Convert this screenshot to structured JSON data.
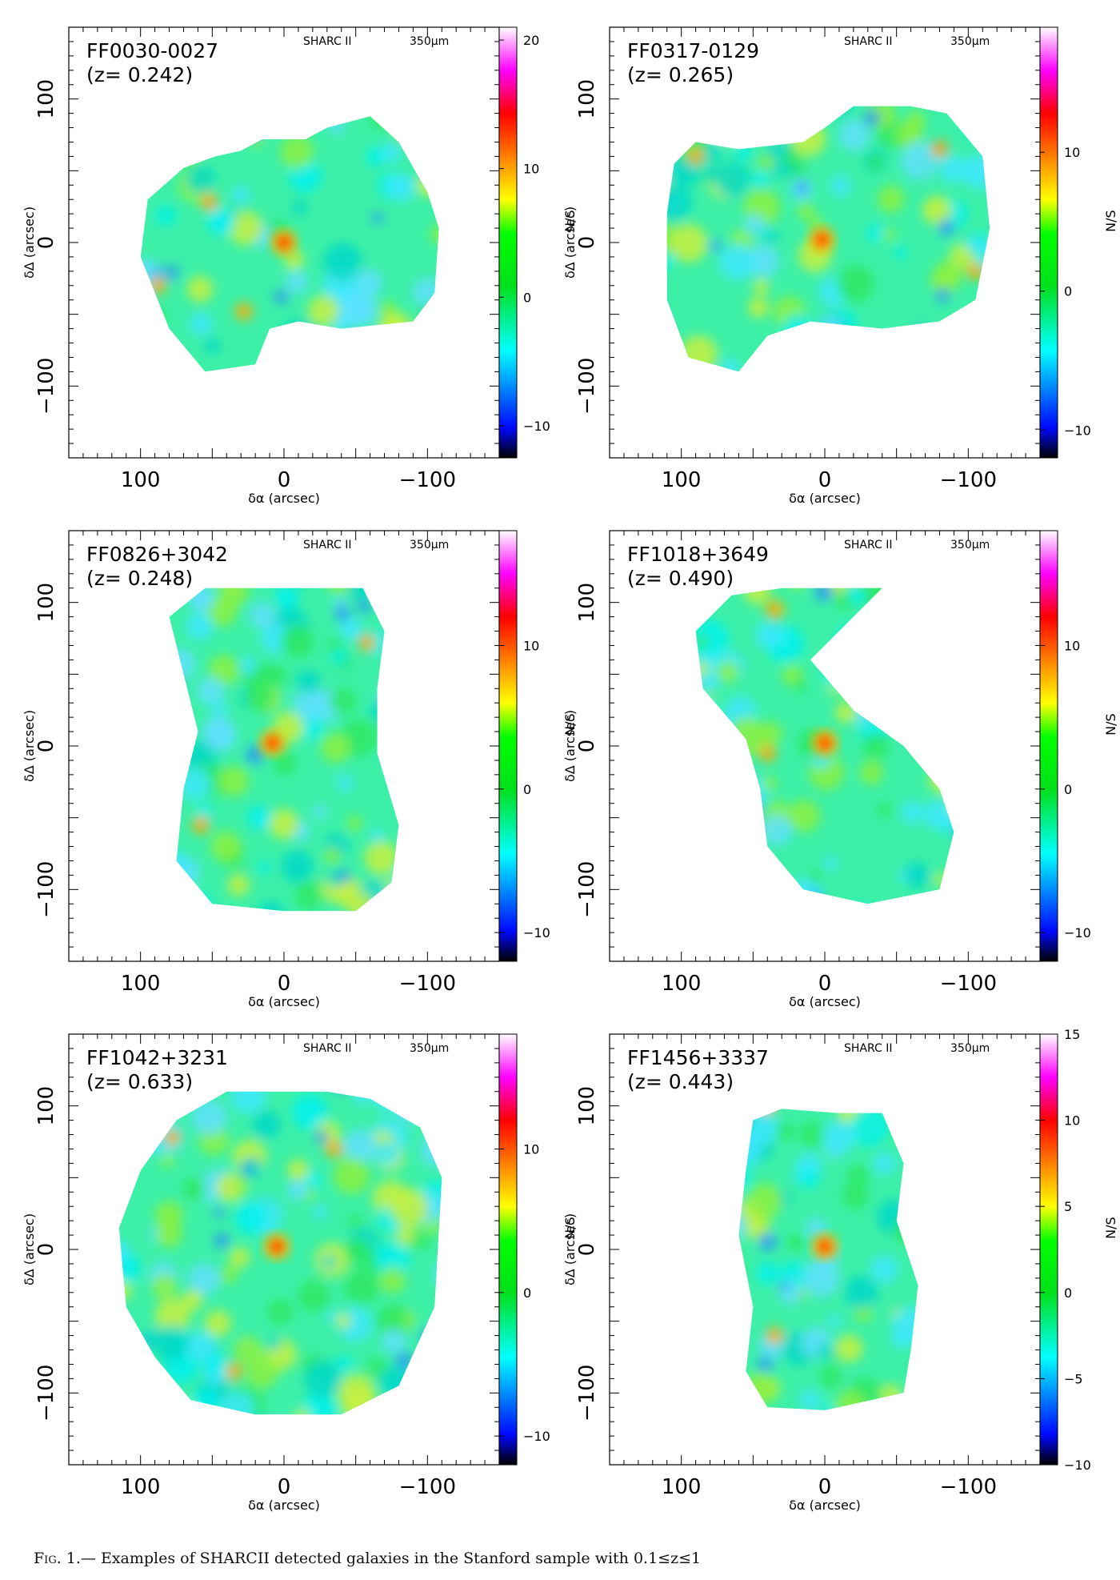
{
  "figure": {
    "caption_label": "Fig. 1.—",
    "caption_text": "Examples of SHARCII detected galaxies in the Stanford sample with 0.1≤z≤1"
  },
  "chart_data": [
    {
      "type": "heatmap",
      "name": "FF0030-0027",
      "redshift_label": "(z= 0.242)",
      "instrument": "SHARC II",
      "wavelength": "350μm",
      "xlabel": "δα (arcsec)",
      "ylabel": "δΔ (arcsec)",
      "colorbar_label": "N/S",
      "xlim": [
        150,
        -150
      ],
      "ylim": [
        -150,
        150
      ],
      "x_ticks": [
        100,
        0,
        -100
      ],
      "x_tick_labels": [
        "100",
        "0",
        "−100"
      ],
      "y_ticks": [
        100,
        0,
        -100
      ],
      "y_tick_labels": [
        "100",
        "0",
        "−100"
      ],
      "colorbar_range": [
        -12.5,
        21
      ],
      "colorbar_ticks": [
        20,
        10,
        0,
        -10
      ],
      "colorbar_tick_labels": [
        "20",
        "10",
        "0",
        "−10"
      ],
      "peak": {
        "x": 0,
        "y": 0,
        "value": 12
      },
      "secondary_peaks": [
        {
          "x": 52,
          "y": 28
        },
        {
          "x": 88,
          "y": -30
        },
        {
          "x": 28,
          "y": -48
        }
      ]
    },
    {
      "type": "heatmap",
      "name": "FF0317-0129",
      "redshift_label": "(z= 0.265)",
      "instrument": "SHARC II",
      "wavelength": "350μm",
      "xlabel": "δα (arcsec)",
      "ylabel": "δΔ (arcsec)",
      "colorbar_label": "N/S",
      "xlim": [
        150,
        -150
      ],
      "ylim": [
        -150,
        150
      ],
      "x_ticks": [
        100,
        0,
        -100
      ],
      "x_tick_labels": [
        "100",
        "0",
        "−100"
      ],
      "y_ticks": [
        100,
        0,
        -100
      ],
      "y_tick_labels": [
        "100",
        "0",
        "−100"
      ],
      "colorbar_range": [
        -12,
        19
      ],
      "colorbar_ticks": [
        10,
        0,
        -10
      ],
      "colorbar_tick_labels": [
        "10",
        "0",
        "−10"
      ],
      "peak": {
        "x": 2,
        "y": 2,
        "value": 11
      },
      "secondary_peaks": [
        {
          "x": -105,
          "y": -20
        },
        {
          "x": -80,
          "y": 65
        },
        {
          "x": 90,
          "y": 60
        }
      ]
    },
    {
      "type": "heatmap",
      "name": "FF0826+3042",
      "redshift_label": "(z= 0.248)",
      "instrument": "SHARC II",
      "wavelength": "350μm",
      "xlabel": "δα (arcsec)",
      "ylabel": "δΔ (arcsec)",
      "colorbar_label": "N/S",
      "xlim": [
        150,
        -150
      ],
      "ylim": [
        -150,
        150
      ],
      "x_ticks": [
        100,
        0,
        -100
      ],
      "x_tick_labels": [
        "100",
        "0",
        "−100"
      ],
      "y_ticks": [
        100,
        0,
        -100
      ],
      "y_tick_labels": [
        "100",
        "0",
        "−100"
      ],
      "colorbar_range": [
        -12,
        18
      ],
      "colorbar_ticks": [
        10,
        0,
        -10
      ],
      "colorbar_tick_labels": [
        "10",
        "0",
        "−10"
      ],
      "peak": {
        "x": 8,
        "y": 2,
        "value": 10
      },
      "secondary_peaks": [
        {
          "x": -58,
          "y": 72
        },
        {
          "x": 58,
          "y": -55
        }
      ]
    },
    {
      "type": "heatmap",
      "name": "FF1018+3649",
      "redshift_label": "(z= 0.490)",
      "instrument": "SHARC II",
      "wavelength": "350μm",
      "xlabel": "δα (arcsec)",
      "ylabel": "δΔ (arcsec)",
      "colorbar_label": "N/S",
      "xlim": [
        150,
        -150
      ],
      "ylim": [
        -150,
        150
      ],
      "x_ticks": [
        100,
        0,
        -100
      ],
      "x_tick_labels": [
        "100",
        "0",
        "−100"
      ],
      "y_ticks": [
        100,
        0,
        -100
      ],
      "y_tick_labels": [
        "100",
        "0",
        "−100"
      ],
      "colorbar_range": [
        -12,
        18
      ],
      "colorbar_ticks": [
        10,
        0,
        -10
      ],
      "colorbar_tick_labels": [
        "10",
        "0",
        "−10"
      ],
      "peak": {
        "x": 0,
        "y": 2,
        "value": 11
      },
      "secondary_peaks": [
        {
          "x": 35,
          "y": 95
        },
        {
          "x": 40,
          "y": -5
        }
      ]
    },
    {
      "type": "heatmap",
      "name": "FF1042+3231",
      "redshift_label": "(z= 0.633)",
      "instrument": "SHARC II",
      "wavelength": "350μm",
      "xlabel": "δα (arcsec)",
      "ylabel": "δΔ (arcsec)",
      "colorbar_label": "N/S",
      "xlim": [
        150,
        -150
      ],
      "ylim": [
        -150,
        150
      ],
      "x_ticks": [
        100,
        0,
        -100
      ],
      "x_tick_labels": [
        "100",
        "0",
        "−100"
      ],
      "y_ticks": [
        100,
        0,
        -100
      ],
      "y_tick_labels": [
        "100",
        "0",
        "−100"
      ],
      "colorbar_range": [
        -12,
        18
      ],
      "colorbar_ticks": [
        10,
        0,
        -10
      ],
      "colorbar_tick_labels": [
        "10",
        "0",
        "−10"
      ],
      "peak": {
        "x": 5,
        "y": 2,
        "value": 10
      },
      "secondary_peaks": [
        {
          "x": 78,
          "y": 78
        },
        {
          "x": -35,
          "y": 70
        },
        {
          "x": 35,
          "y": -85
        }
      ]
    },
    {
      "type": "heatmap",
      "name": "FF1456+3337",
      "redshift_label": "(z= 0.443)",
      "instrument": "SHARC II",
      "wavelength": "350μm",
      "xlabel": "δα (arcsec)",
      "ylabel": "δΔ (arcsec)",
      "colorbar_label": "N/S",
      "xlim": [
        150,
        -150
      ],
      "ylim": [
        -150,
        150
      ],
      "x_ticks": [
        100,
        0,
        -100
      ],
      "x_tick_labels": [
        "100",
        "0",
        "−100"
      ],
      "y_ticks": [
        100,
        0,
        -100
      ],
      "y_tick_labels": [
        "100",
        "0",
        "−100"
      ],
      "colorbar_range": [
        -10,
        15
      ],
      "colorbar_ticks": [
        15,
        10,
        5,
        0,
        -5,
        -10
      ],
      "colorbar_tick_labels": [
        "15",
        "10",
        "5",
        "0",
        "−5",
        "−10"
      ],
      "peak": {
        "x": 0,
        "y": 2,
        "value": 8
      },
      "secondary_peaks": [
        {
          "x": 40,
          "y": 100
        },
        {
          "x": 35,
          "y": -60
        }
      ]
    }
  ]
}
